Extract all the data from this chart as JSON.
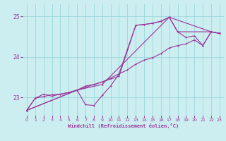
{
  "title": "",
  "xlabel": "Windchill (Refroidissement éolien,°C)",
  "bg_color": "#cceef0",
  "grid_color": "#99d8dc",
  "line_color": "#993399",
  "xlim": [
    -0.5,
    23.5
  ],
  "ylim": [
    22.55,
    25.3
  ],
  "yticks": [
    23,
    24,
    25
  ],
  "xticks": [
    0,
    1,
    2,
    3,
    4,
    5,
    6,
    7,
    8,
    9,
    10,
    11,
    12,
    13,
    14,
    15,
    16,
    17,
    18,
    19,
    20,
    21,
    22,
    23
  ],
  "series1": [
    [
      0,
      22.68
    ],
    [
      1,
      22.98
    ],
    [
      2,
      23.08
    ],
    [
      3,
      23.03
    ],
    [
      4,
      23.08
    ],
    [
      5,
      23.12
    ],
    [
      6,
      23.18
    ],
    [
      7,
      22.82
    ],
    [
      8,
      22.8
    ],
    [
      9,
      23.05
    ],
    [
      10,
      23.28
    ],
    [
      11,
      23.58
    ],
    [
      12,
      24.18
    ],
    [
      13,
      24.78
    ],
    [
      14,
      24.8
    ],
    [
      15,
      24.83
    ],
    [
      16,
      24.88
    ],
    [
      17,
      24.98
    ],
    [
      18,
      24.62
    ],
    [
      19,
      24.48
    ],
    [
      20,
      24.52
    ],
    [
      21,
      24.28
    ],
    [
      22,
      24.62
    ],
    [
      23,
      24.58
    ]
  ],
  "series2": [
    [
      0,
      22.68
    ],
    [
      1,
      22.98
    ],
    [
      2,
      23.02
    ],
    [
      3,
      23.07
    ],
    [
      4,
      23.08
    ],
    [
      5,
      23.12
    ],
    [
      6,
      23.18
    ],
    [
      7,
      23.28
    ],
    [
      8,
      23.32
    ],
    [
      9,
      23.38
    ],
    [
      10,
      23.48
    ],
    [
      11,
      23.58
    ],
    [
      12,
      23.68
    ],
    [
      13,
      23.82
    ],
    [
      14,
      23.92
    ],
    [
      15,
      23.98
    ],
    [
      16,
      24.08
    ],
    [
      17,
      24.22
    ],
    [
      18,
      24.28
    ],
    [
      19,
      24.32
    ],
    [
      20,
      24.42
    ],
    [
      21,
      24.28
    ],
    [
      22,
      24.62
    ],
    [
      23,
      24.58
    ]
  ],
  "series3": [
    [
      0,
      22.68
    ],
    [
      6,
      23.18
    ],
    [
      11,
      23.52
    ],
    [
      13,
      24.78
    ],
    [
      14,
      24.8
    ],
    [
      15,
      24.83
    ],
    [
      16,
      24.88
    ],
    [
      17,
      24.98
    ],
    [
      18,
      24.62
    ],
    [
      22,
      24.62
    ],
    [
      23,
      24.58
    ]
  ],
  "series4": [
    [
      0,
      22.68
    ],
    [
      6,
      23.18
    ],
    [
      9,
      23.32
    ],
    [
      17,
      24.98
    ],
    [
      22,
      24.62
    ],
    [
      23,
      24.58
    ]
  ]
}
